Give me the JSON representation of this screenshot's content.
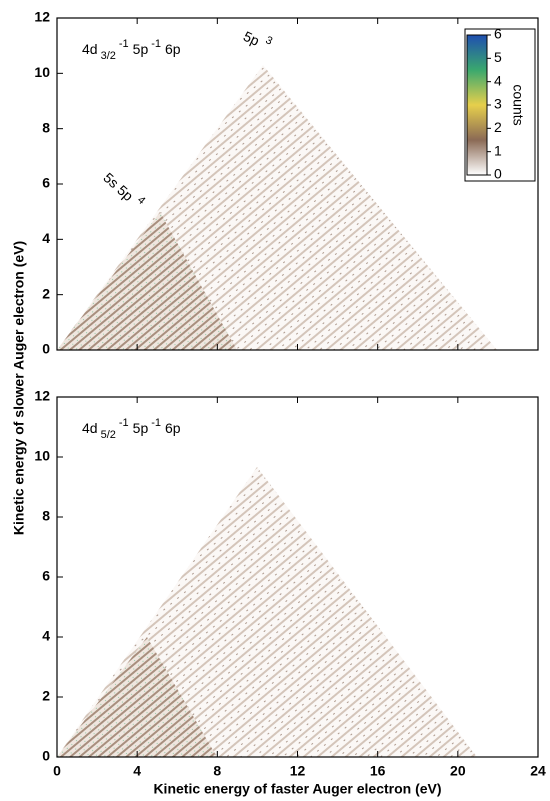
{
  "chart_data": [
    {
      "type": "heatmap",
      "annotation": [
        "4d",
        "3/2",
        "-1",
        "5p",
        "-1",
        "6p"
      ],
      "peak_labels": [
        [
          "5s 5p",
          "4"
        ],
        [
          "5p",
          "3"
        ]
      ],
      "ylabel": "Kinetic energy of slower Auger electron (eV)",
      "xlim": [
        0,
        24
      ],
      "xticks": [
        0,
        4,
        8,
        12,
        16,
        20,
        24
      ],
      "ylim": [
        0,
        12
      ],
      "yticks": [
        0,
        2,
        4,
        6,
        8,
        10,
        12
      ],
      "colorbar": {
        "label": "counts",
        "lim": [
          0,
          6
        ],
        "ticks": [
          0,
          1,
          2,
          3,
          4,
          5,
          6
        ],
        "colors": [
          "#ffffff",
          "#8b6a55",
          "#e6cf4c",
          "#3aa86e",
          "#1f4fb0"
        ]
      }
    },
    {
      "type": "heatmap",
      "annotation": [
        "4d",
        "5/2",
        "-1",
        "5p",
        "-1",
        "6p"
      ],
      "xlabel": "Kinetic energy of faster Auger electron (eV)",
      "xlim": [
        0,
        24
      ],
      "xticks": [
        0,
        4,
        8,
        12,
        16,
        20,
        24
      ],
      "ylim": [
        0,
        12
      ],
      "yticks": [
        0,
        2,
        4,
        6,
        8,
        10,
        12
      ]
    }
  ]
}
